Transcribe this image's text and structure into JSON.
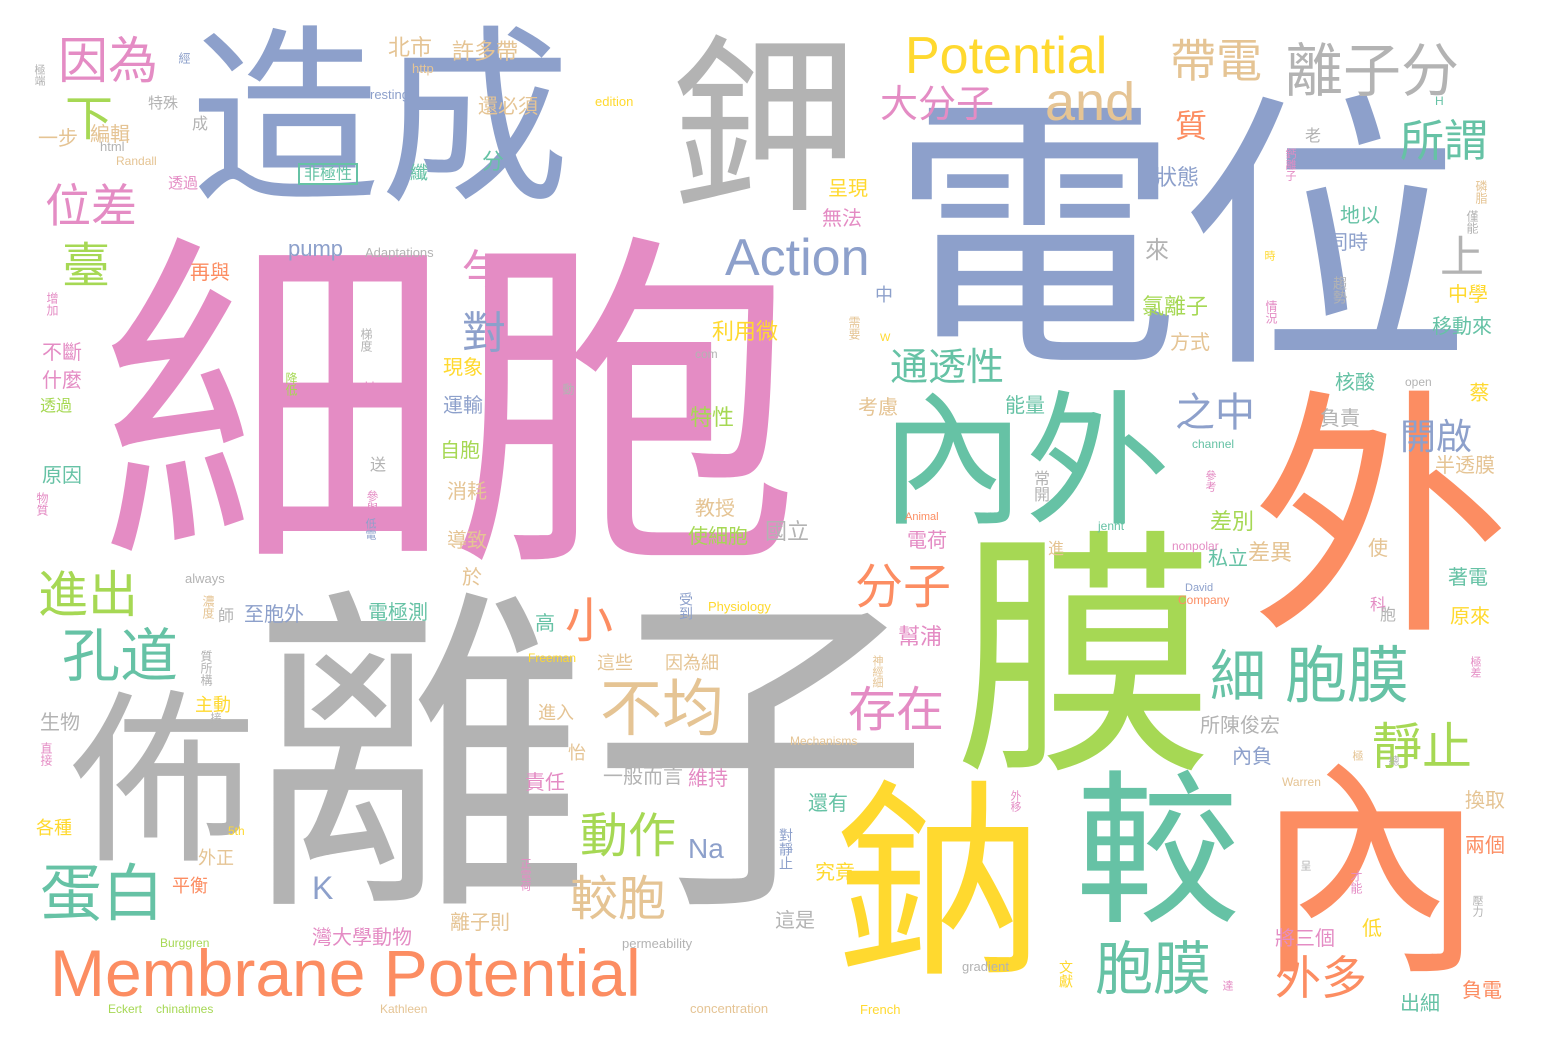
{
  "words": [
    {
      "text": "細胞",
      "color": "pink"
    },
    {
      "text": "離子",
      "color": "gray"
    },
    {
      "text": "電位",
      "color": "blue"
    },
    {
      "text": "造成",
      "color": "blue"
    },
    {
      "text": "鉀",
      "color": "gray"
    },
    {
      "text": "膜",
      "color": "green"
    },
    {
      "text": "外",
      "color": "orange"
    },
    {
      "text": "內",
      "color": "orange"
    },
    {
      "text": "鈉",
      "color": "yellow"
    },
    {
      "text": "較",
      "color": "teal"
    },
    {
      "text": "佈",
      "color": "gray"
    },
    {
      "text": "內外",
      "color": "teal"
    },
    {
      "text": "Membrane Potential",
      "color": "orange"
    },
    {
      "text": "Potential",
      "color": "yellow"
    },
    {
      "text": "and",
      "color": "tan"
    },
    {
      "text": "Action",
      "color": "blue"
    },
    {
      "text": "帶電",
      "color": "tan"
    },
    {
      "text": "離子分",
      "color": "gray"
    },
    {
      "text": "大分子",
      "color": "pink"
    },
    {
      "text": "因為",
      "color": "pink"
    },
    {
      "text": "位差",
      "color": "pink"
    },
    {
      "text": "臺",
      "color": "green"
    },
    {
      "text": "下",
      "color": "green"
    },
    {
      "text": "所謂",
      "color": "teal"
    },
    {
      "text": "質",
      "color": "orange"
    },
    {
      "text": "上",
      "color": "gray"
    },
    {
      "text": "勻",
      "color": "pink"
    },
    {
      "text": "對",
      "color": "blue"
    },
    {
      "text": "之中",
      "color": "blue"
    },
    {
      "text": "通透性",
      "color": "teal"
    },
    {
      "text": "分子",
      "color": "orange"
    },
    {
      "text": "細",
      "color": "teal"
    },
    {
      "text": "胞膜",
      "color": "teal"
    },
    {
      "text": "存在",
      "color": "pink"
    },
    {
      "text": "靜止",
      "color": "green"
    },
    {
      "text": "開啟",
      "color": "blue"
    },
    {
      "text": "進出",
      "color": "green"
    },
    {
      "text": "孔道",
      "color": "teal"
    },
    {
      "text": "小",
      "color": "orange"
    },
    {
      "text": "不均",
      "color": "tan"
    },
    {
      "text": "動作",
      "color": "green"
    },
    {
      "text": "較胞",
      "color": "tan"
    },
    {
      "text": "蛋白",
      "color": "teal"
    },
    {
      "text": "K",
      "color": "blue"
    },
    {
      "text": "Na",
      "color": "blue"
    },
    {
      "text": "胞膜",
      "color": "teal"
    },
    {
      "text": "外多",
      "color": "orange"
    },
    {
      "text": "北市",
      "color": "tan"
    },
    {
      "text": "許多帶",
      "color": "tan"
    },
    {
      "text": "還必須",
      "color": "tan"
    },
    {
      "text": "resting",
      "color": "blue"
    },
    {
      "text": "http",
      "color": "tan"
    },
    {
      "text": "edition",
      "color": "yellow"
    },
    {
      "text": "非極性",
      "color": "teal"
    },
    {
      "text": "編輯",
      "color": "tan"
    },
    {
      "text": "特殊",
      "color": "gray"
    },
    {
      "text": "一步",
      "color": "tan"
    },
    {
      "text": "html",
      "color": "gray"
    },
    {
      "text": "Randall",
      "color": "tan"
    },
    {
      "text": "透過",
      "color": "pink"
    },
    {
      "text": "成",
      "color": "gray"
    },
    {
      "text": "纖",
      "color": "teal"
    },
    {
      "text": "分",
      "color": "teal"
    },
    {
      "text": "呈現",
      "color": "yellow"
    },
    {
      "text": "無法",
      "color": "pink"
    },
    {
      "text": "pump",
      "color": "blue"
    },
    {
      "text": "Adaptations",
      "color": "gray"
    },
    {
      "text": "再與",
      "color": "orange"
    },
    {
      "text": "狀態",
      "color": "blue"
    },
    {
      "text": "老",
      "color": "gray"
    },
    {
      "text": "地以",
      "color": "teal"
    },
    {
      "text": "同時",
      "color": "blue"
    },
    {
      "text": "來",
      "color": "gray"
    },
    {
      "text": "氯離子",
      "color": "green"
    },
    {
      "text": "方式",
      "color": "tan"
    },
    {
      "text": "中學",
      "color": "yellow"
    },
    {
      "text": "移動來",
      "color": "teal"
    },
    {
      "text": "中",
      "color": "blue"
    },
    {
      "text": "利用微",
      "color": "yellow"
    },
    {
      "text": "不斷",
      "color": "pink"
    },
    {
      "text": "什麼",
      "color": "pink"
    },
    {
      "text": "透過",
      "color": "green"
    },
    {
      "text": "現象",
      "color": "yellow"
    },
    {
      "text": "運輸",
      "color": "blue"
    },
    {
      "text": "能量",
      "color": "teal"
    },
    {
      "text": "核酸",
      "color": "teal"
    },
    {
      "text": "負責",
      "color": "gray"
    },
    {
      "text": "考慮",
      "color": "tan"
    },
    {
      "text": "特性",
      "color": "green"
    },
    {
      "text": "自胞",
      "color": "green"
    },
    {
      "text": "消耗",
      "color": "tan"
    },
    {
      "text": "教授",
      "color": "tan"
    },
    {
      "text": "國立",
      "color": "gray"
    },
    {
      "text": "使細胞",
      "color": "green"
    },
    {
      "text": "電荷",
      "color": "pink"
    },
    {
      "text": "差別",
      "color": "green"
    },
    {
      "text": "原因",
      "color": "teal"
    },
    {
      "text": "導致",
      "color": "tan"
    },
    {
      "text": "半透膜",
      "color": "tan"
    },
    {
      "text": "私立",
      "color": "teal"
    },
    {
      "text": "差異",
      "color": "tan"
    },
    {
      "text": "使",
      "color": "tan"
    },
    {
      "text": "著電",
      "color": "teal"
    },
    {
      "text": "原來",
      "color": "yellow"
    },
    {
      "text": "於",
      "color": "tan"
    },
    {
      "text": "師",
      "color": "gray"
    },
    {
      "text": "至胞外",
      "color": "blue"
    },
    {
      "text": "電極測",
      "color": "teal"
    },
    {
      "text": "高",
      "color": "teal"
    },
    {
      "text": "生物",
      "color": "gray"
    },
    {
      "text": "主動",
      "color": "yellow"
    },
    {
      "text": "這些",
      "color": "tan"
    },
    {
      "text": "因為細",
      "color": "tan"
    },
    {
      "text": "幫浦",
      "color": "pink"
    },
    {
      "text": "進入",
      "color": "tan"
    },
    {
      "text": "所陳俊宏",
      "color": "gray"
    },
    {
      "text": "內負",
      "color": "blue"
    },
    {
      "text": "一般而言",
      "color": "gray"
    },
    {
      "text": "維持",
      "color": "pink"
    },
    {
      "text": "責任",
      "color": "pink"
    },
    {
      "text": "怡",
      "color": "tan"
    },
    {
      "text": "還有",
      "color": "teal"
    },
    {
      "text": "換取",
      "color": "tan"
    },
    {
      "text": "兩個",
      "color": "orange"
    },
    {
      "text": "各種",
      "color": "yellow"
    },
    {
      "text": "外正",
      "color": "tan"
    },
    {
      "text": "平衡",
      "color": "orange"
    },
    {
      "text": "究竟",
      "color": "yellow"
    },
    {
      "text": "這是",
      "color": "gray"
    },
    {
      "text": "灣大學動物",
      "color": "pink"
    },
    {
      "text": "離子則",
      "color": "tan"
    },
    {
      "text": "將三個",
      "color": "pink"
    },
    {
      "text": "低",
      "color": "yellow"
    },
    {
      "text": "負電",
      "color": "orange"
    },
    {
      "text": "出細",
      "color": "teal"
    },
    {
      "text": "always",
      "color": "gray"
    },
    {
      "text": "Physiology",
      "color": "yellow"
    },
    {
      "text": "Company",
      "color": "orange"
    },
    {
      "text": "Mechanisms",
      "color": "tan"
    },
    {
      "text": "Warren",
      "color": "tan"
    },
    {
      "text": "Freeman",
      "color": "yellow"
    },
    {
      "text": "5th",
      "color": "yellow"
    },
    {
      "text": "Burggren",
      "color": "green"
    },
    {
      "text": "permeability",
      "color": "gray"
    },
    {
      "text": "gradient",
      "color": "gray"
    },
    {
      "text": "concentration",
      "color": "tan"
    },
    {
      "text": "French",
      "color": "yellow"
    },
    {
      "text": "Eckert",
      "color": "green"
    },
    {
      "text": "chinatimes",
      "color": "green"
    },
    {
      "text": "Kathleen",
      "color": "tan"
    },
    {
      "text": "David",
      "color": "blue"
    },
    {
      "text": "nonpolar",
      "color": "pink"
    },
    {
      "text": "Animal",
      "color": "orange"
    },
    {
      "text": "jennt",
      "color": "teal"
    },
    {
      "text": "channel",
      "color": "teal"
    },
    {
      "text": "open",
      "color": "gray"
    },
    {
      "text": "com",
      "color": "gray"
    },
    {
      "text": "blog",
      "color": "pink"
    },
    {
      "text": "W",
      "color": "yellow"
    },
    {
      "text": "H",
      "color": "teal"
    },
    {
      "text": "動",
      "color": "gray"
    },
    {
      "text": "送",
      "color": "gray"
    },
    {
      "text": "常開",
      "color": "gray"
    },
    {
      "text": "參考",
      "color": "pink"
    },
    {
      "text": "受到",
      "color": "blue"
    },
    {
      "text": "科",
      "color": "pink"
    },
    {
      "text": "胞",
      "color": "gray"
    },
    {
      "text": "進",
      "color": "tan"
    },
    {
      "text": "需要",
      "color": "tan"
    },
    {
      "text": "情況",
      "color": "pink"
    },
    {
      "text": "趨勢",
      "color": "gray"
    },
    {
      "text": "才能",
      "color": "pink"
    },
    {
      "text": "壓力",
      "color": "gray"
    },
    {
      "text": "文獻",
      "color": "yellow"
    },
    {
      "text": "僅能",
      "color": "gray"
    },
    {
      "text": "磷脂",
      "color": "tan"
    },
    {
      "text": "時",
      "color": "yellow"
    },
    {
      "text": "蔡",
      "color": "yellow"
    },
    {
      "text": "神經細",
      "color": "tan"
    },
    {
      "text": "極差",
      "color": "pink"
    },
    {
      "text": "質所構",
      "color": "gray"
    },
    {
      "text": "物質",
      "color": "pink"
    },
    {
      "text": "參與",
      "color": "pink"
    },
    {
      "text": "直接",
      "color": "pink"
    },
    {
      "text": "梯度",
      "color": "gray"
    },
    {
      "text": "增加",
      "color": "pink"
    },
    {
      "text": "濃度",
      "color": "tan"
    },
    {
      "text": "正電荷",
      "color": "pink"
    },
    {
      "text": "鈣離子",
      "color": "pink"
    },
    {
      "text": "外移",
      "color": "pink"
    },
    {
      "text": "對靜止",
      "color": "blue"
    },
    {
      "text": "低電",
      "color": "blue"
    },
    {
      "text": "經",
      "color": "blue"
    },
    {
      "text": "降低",
      "color": "green"
    },
    {
      "text": "極端",
      "color": "gray"
    },
    {
      "text": "呈",
      "color": "gray"
    },
    {
      "text": "接",
      "color": "gray"
    },
    {
      "text": "總",
      "color": "gray"
    },
    {
      "text": "極",
      "color": "tan"
    },
    {
      "text": "達",
      "color": "pink"
    }
  ]
}
